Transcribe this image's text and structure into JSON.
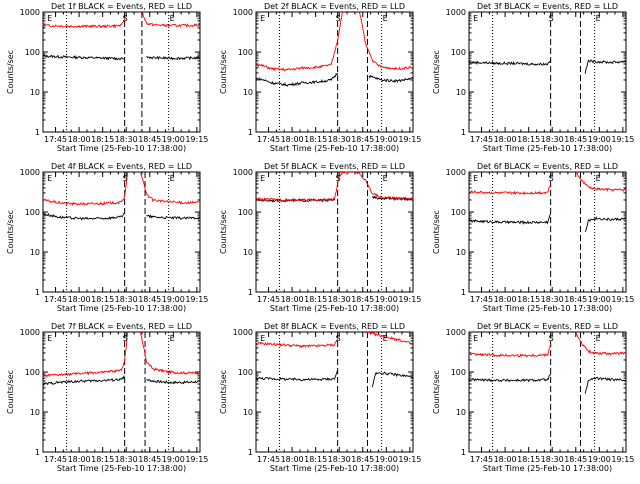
{
  "chart_data": [
    {
      "type": "line",
      "title": "Det 1f BLACK = Events, RED = LLD",
      "xlabel": "Start Time (25-Feb-10 17:38:00)",
      "ylabel": "Counts/sec",
      "xticks": [
        "17:45",
        "18:00",
        "18:15",
        "18:30",
        "18:45",
        "19:00",
        "19:15"
      ],
      "yticks": [
        "1",
        "10",
        "100",
        "1000"
      ],
      "ylog": true,
      "ylim": [
        1,
        1000
      ],
      "xlim_min": [
        0,
        100
      ],
      "markers": {
        "E1": 2,
        "S": 52,
        "E2": 80
      },
      "dashed": [
        52,
        63
      ],
      "dotted": [
        15,
        80
      ],
      "series": [
        {
          "name": "Events",
          "color": "#000000",
          "x": [
            0,
            10,
            20,
            30,
            40,
            50,
            52
          ],
          "y": [
            80,
            76,
            74,
            72,
            70,
            68,
            68
          ]
        },
        {
          "name": "LLD",
          "color": "#ff0000",
          "x": [
            0,
            10,
            20,
            30,
            40,
            50,
            52
          ],
          "y": [
            460,
            450,
            440,
            440,
            440,
            460,
            700
          ]
        },
        {
          "name": "Events",
          "color": "#000000",
          "x": [
            66,
            70,
            80,
            90,
            100
          ],
          "y": [
            75,
            72,
            70,
            70,
            72
          ]
        },
        {
          "name": "LLD",
          "color": "#ff0000",
          "x": [
            63,
            66,
            70,
            80,
            90,
            100
          ],
          "y": [
            1000,
            520,
            480,
            460,
            460,
            470
          ]
        }
      ]
    },
    {
      "type": "line",
      "title": "Det 2f BLACK = Events, RED = LLD",
      "xlabel": "Start Time (25-Feb-10 17:38:00)",
      "ylabel": "Counts/sec",
      "xticks": [
        "17:45",
        "18:00",
        "18:15",
        "18:30",
        "18:45",
        "19:00",
        "19:15"
      ],
      "yticks": [
        "1",
        "10",
        "100",
        "1000"
      ],
      "ylog": true,
      "ylim": [
        1,
        1000
      ],
      "xlim_min": [
        0,
        100
      ],
      "markers": {
        "E1": 2,
        "S": 52,
        "E2": 80
      },
      "dashed": [
        52,
        71
      ],
      "dotted": [
        15,
        80
      ],
      "series": [
        {
          "name": "Events",
          "color": "#000000",
          "x": [
            0,
            5,
            10,
            20,
            30,
            40,
            48,
            52
          ],
          "y": [
            22,
            20,
            17,
            15,
            17,
            18,
            20,
            30
          ]
        },
        {
          "name": "LLD",
          "color": "#ff0000",
          "x": [
            0,
            5,
            10,
            20,
            30,
            40,
            48,
            52,
            55
          ],
          "y": [
            48,
            45,
            38,
            36,
            40,
            42,
            48,
            200,
            1000
          ]
        },
        {
          "name": "Events",
          "color": "#000000",
          "x": [
            72,
            80,
            90,
            100
          ],
          "y": [
            25,
            20,
            19,
            22
          ]
        },
        {
          "name": "LLD",
          "color": "#ff0000",
          "x": [
            66,
            70,
            75,
            80,
            90,
            100
          ],
          "y": [
            1000,
            150,
            55,
            42,
            38,
            42
          ]
        }
      ]
    },
    {
      "type": "line",
      "title": "Det 3f BLACK = Events, RED = LLD",
      "xlabel": "Start Time (25-Feb-10 17:38:00)",
      "ylabel": "Counts/sec",
      "xticks": [
        "17:45",
        "18:00",
        "18:15",
        "18:30",
        "18:45",
        "19:00",
        "19:15"
      ],
      "yticks": [
        "1",
        "10",
        "100",
        "1000"
      ],
      "ylog": true,
      "ylim": [
        1,
        1000
      ],
      "xlim_min": [
        0,
        100
      ],
      "markers": {
        "E1": 2,
        "S": 52,
        "E2": 80
      },
      "dashed": [
        52,
        71
      ],
      "dotted": [
        15,
        80
      ],
      "series": [
        {
          "name": "Events",
          "color": "#000000",
          "x": [
            0,
            10,
            20,
            30,
            40,
            50,
            52
          ],
          "y": [
            55,
            54,
            52,
            52,
            50,
            50,
            65
          ]
        },
        {
          "name": "Events",
          "color": "#000000",
          "x": [
            74,
            76,
            80,
            90,
            100
          ],
          "y": [
            30,
            60,
            58,
            55,
            58
          ]
        }
      ]
    },
    {
      "type": "line",
      "title": "Det 4f BLACK = Events, RED = LLD",
      "xlabel": "Start Time (25-Feb-10 17:38:00)",
      "ylabel": "Counts/sec",
      "xticks": [
        "17:45",
        "18:00",
        "18:15",
        "18:30",
        "18:45",
        "19:00",
        "19:15"
      ],
      "yticks": [
        "1",
        "10",
        "100",
        "1000"
      ],
      "ylog": true,
      "ylim": [
        1,
        1000
      ],
      "xlim_min": [
        0,
        100
      ],
      "markers": {
        "E1": 2,
        "S": 52,
        "E2": 80
      },
      "dashed": [
        52,
        65
      ],
      "dotted": [
        15,
        80
      ],
      "series": [
        {
          "name": "Events",
          "color": "#000000",
          "x": [
            0,
            10,
            20,
            30,
            40,
            50,
            52
          ],
          "y": [
            90,
            75,
            70,
            68,
            70,
            75,
            90
          ]
        },
        {
          "name": "LLD",
          "color": "#ff0000",
          "x": [
            0,
            10,
            20,
            30,
            40,
            50,
            52,
            54
          ],
          "y": [
            200,
            170,
            160,
            160,
            165,
            175,
            250,
            1000
          ]
        },
        {
          "name": "Events",
          "color": "#000000",
          "x": [
            66,
            70,
            80,
            90,
            100
          ],
          "y": [
            80,
            75,
            72,
            70,
            72
          ]
        },
        {
          "name": "LLD",
          "color": "#ff0000",
          "x": [
            62,
            66,
            70,
            80,
            90,
            100
          ],
          "y": [
            1000,
            280,
            200,
            180,
            170,
            175
          ]
        }
      ]
    },
    {
      "type": "line",
      "title": "Det 5f BLACK = Events, RED = LLD",
      "xlabel": "Start Time (25-Feb-10 17:38:00)",
      "ylabel": "Counts/sec",
      "xticks": [
        "17:45",
        "18:00",
        "18:15",
        "18:30",
        "18:45",
        "19:00",
        "19:15"
      ],
      "yticks": [
        "1",
        "10",
        "100",
        "1000"
      ],
      "ylog": true,
      "ylim": [
        1,
        1000
      ],
      "xlim_min": [
        0,
        100
      ],
      "markers": {
        "E1": 2,
        "S": 52,
        "E2": 80
      },
      "dashed": [
        52,
        71
      ],
      "dotted": [
        15,
        80
      ],
      "series": [
        {
          "name": "Events",
          "color": "#000000",
          "x": [
            0,
            10,
            20,
            30,
            40,
            50
          ],
          "y": [
            200,
            195,
            195,
            195,
            195,
            200
          ]
        },
        {
          "name": "LLD",
          "color": "#ff0000",
          "x": [
            0,
            10,
            20,
            30,
            40,
            50,
            53,
            56,
            60
          ],
          "y": [
            210,
            205,
            200,
            200,
            200,
            210,
            800,
            1000,
            1000
          ]
        },
        {
          "name": "Events",
          "color": "#000000",
          "x": [
            74,
            80,
            90,
            100
          ],
          "y": [
            230,
            220,
            215,
            210
          ]
        },
        {
          "name": "LLD",
          "color": "#ff0000",
          "x": [
            62,
            66,
            70,
            74,
            80,
            90,
            100
          ],
          "y": [
            1000,
            900,
            600,
            300,
            230,
            220,
            220
          ]
        }
      ]
    },
    {
      "type": "line",
      "title": "Det 6f BLACK = Events, RED = LLD",
      "xlabel": "Start Time (25-Feb-10 17:38:00)",
      "ylabel": "Counts/sec",
      "xticks": [
        "17:45",
        "18:00",
        "18:15",
        "18:30",
        "18:45",
        "19:00",
        "19:15"
      ],
      "yticks": [
        "1",
        "10",
        "100",
        "1000"
      ],
      "ylog": true,
      "ylim": [
        1,
        1000
      ],
      "xlim_min": [
        0,
        100
      ],
      "markers": {
        "E1": 2,
        "S": 52,
        "E2": 80
      },
      "dashed": [
        52,
        71
      ],
      "dotted": [
        15,
        80
      ],
      "series": [
        {
          "name": "Events",
          "color": "#000000",
          "x": [
            0,
            10,
            20,
            30,
            40,
            50,
            52
          ],
          "y": [
            60,
            58,
            56,
            55,
            55,
            56,
            90
          ]
        },
        {
          "name": "LLD",
          "color": "#ff0000",
          "x": [
            0,
            10,
            20,
            30,
            40,
            50,
            52
          ],
          "y": [
            320,
            310,
            300,
            300,
            300,
            310,
            500
          ]
        },
        {
          "name": "Events",
          "color": "#000000",
          "x": [
            74,
            76,
            80,
            90,
            100
          ],
          "y": [
            30,
            60,
            70,
            65,
            68
          ]
        },
        {
          "name": "LLD",
          "color": "#ff0000",
          "x": [
            68,
            72,
            76,
            80,
            90,
            100
          ],
          "y": [
            1000,
            600,
            420,
            380,
            360,
            360
          ]
        }
      ]
    },
    {
      "type": "line",
      "title": "Det 7f BLACK = Events, RED = LLD",
      "xlabel": "Start Time (25-Feb-10 17:38:00)",
      "ylabel": "Counts/sec",
      "xticks": [
        "17:45",
        "18:00",
        "18:15",
        "18:30",
        "18:45",
        "19:00",
        "19:15"
      ],
      "yticks": [
        "1",
        "10",
        "100",
        "1000"
      ],
      "ylog": true,
      "ylim": [
        1,
        1000
      ],
      "xlim_min": [
        0,
        100
      ],
      "markers": {
        "E1": 2,
        "S": 52,
        "E2": 80
      },
      "dashed": [
        52,
        65
      ],
      "dotted": [
        15,
        80
      ],
      "series": [
        {
          "name": "Events",
          "color": "#000000",
          "x": [
            0,
            10,
            20,
            30,
            40,
            50,
            52
          ],
          "y": [
            50,
            55,
            58,
            60,
            62,
            65,
            80
          ]
        },
        {
          "name": "LLD",
          "color": "#ff0000",
          "x": [
            0,
            10,
            20,
            30,
            40,
            50,
            52,
            54
          ],
          "y": [
            80,
            85,
            90,
            95,
            100,
            110,
            200,
            1000
          ]
        },
        {
          "name": "Events",
          "color": "#000000",
          "x": [
            66,
            70,
            80,
            90,
            100
          ],
          "y": [
            65,
            60,
            55,
            55,
            58
          ]
        },
        {
          "name": "LLD",
          "color": "#ff0000",
          "x": [
            62,
            66,
            70,
            80,
            90,
            100
          ],
          "y": [
            1000,
            180,
            120,
            100,
            95,
            95
          ]
        }
      ]
    },
    {
      "type": "line",
      "title": "Det 8f BLACK = Events, RED = LLD",
      "xlabel": "Start Time (25-Feb-10 17:38:00)",
      "ylabel": "Counts/sec",
      "xticks": [
        "17:45",
        "18:00",
        "18:15",
        "18:30",
        "18:45",
        "19:00",
        "19:15"
      ],
      "yticks": [
        "1",
        "10",
        "100",
        "1000"
      ],
      "ylog": true,
      "ylim": [
        1,
        1000
      ],
      "xlim_min": [
        0,
        100
      ],
      "markers": {
        "E1": 2,
        "S": 52,
        "E2": 80
      },
      "dashed": [
        52,
        71
      ],
      "dotted": [
        15,
        80
      ],
      "series": [
        {
          "name": "Events",
          "color": "#000000",
          "x": [
            0,
            10,
            20,
            30,
            40,
            50,
            52
          ],
          "y": [
            70,
            68,
            66,
            65,
            65,
            68,
            110
          ]
        },
        {
          "name": "LLD",
          "color": "#ff0000",
          "x": [
            0,
            10,
            20,
            30,
            40,
            50,
            52
          ],
          "y": [
            520,
            500,
            470,
            440,
            450,
            480,
            700
          ]
        },
        {
          "name": "Events",
          "color": "#000000",
          "x": [
            74,
            76,
            80,
            90,
            100
          ],
          "y": [
            40,
            90,
            95,
            85,
            75
          ]
        },
        {
          "name": "LLD",
          "color": "#ff0000",
          "x": [
            70,
            74,
            80,
            90,
            100
          ],
          "y": [
            1000,
            900,
            800,
            650,
            500
          ]
        }
      ]
    },
    {
      "type": "line",
      "title": "Det 9f BLACK = Events, RED = LLD",
      "xlabel": "Start Time (25-Feb-10 17:38:00)",
      "ylabel": "Counts/sec",
      "xticks": [
        "17:45",
        "18:00",
        "18:15",
        "18:30",
        "18:45",
        "19:00",
        "19:15"
      ],
      "yticks": [
        "1",
        "10",
        "100",
        "1000"
      ],
      "ylog": true,
      "ylim": [
        1,
        1000
      ],
      "xlim_min": [
        0,
        100
      ],
      "markers": {
        "E1": 2,
        "S": 52,
        "E2": 80
      },
      "dashed": [
        52,
        71
      ],
      "dotted": [
        15,
        80
      ],
      "series": [
        {
          "name": "Events",
          "color": "#000000",
          "x": [
            0,
            10,
            20,
            30,
            40,
            50,
            52
          ],
          "y": [
            65,
            63,
            62,
            62,
            62,
            64,
            90
          ]
        },
        {
          "name": "LLD",
          "color": "#ff0000",
          "x": [
            0,
            10,
            20,
            30,
            40,
            50,
            52
          ],
          "y": [
            280,
            270,
            260,
            260,
            260,
            270,
            500
          ]
        },
        {
          "name": "Events",
          "color": "#000000",
          "x": [
            74,
            76,
            80,
            90,
            100
          ],
          "y": [
            30,
            60,
            70,
            65,
            62
          ]
        },
        {
          "name": "LLD",
          "color": "#ff0000",
          "x": [
            68,
            72,
            76,
            80,
            90,
            100
          ],
          "y": [
            1000,
            500,
            330,
            300,
            290,
            290
          ]
        }
      ]
    }
  ]
}
